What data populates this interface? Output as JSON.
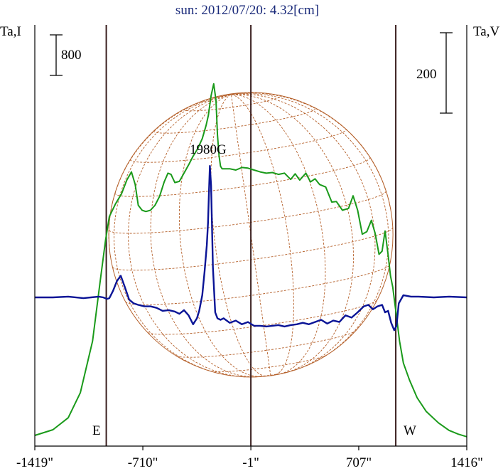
{
  "colors": {
    "frame": "#000000",
    "limb_lines": "#3a1f1f",
    "intensity_curve": "#1a9a1a",
    "polarization_curve": "#0a1496",
    "grid": "#b5602a",
    "text_title": "#1a2a7a",
    "text": "#000000"
  },
  "chart_data": {
    "type": "line",
    "title": "sun: 2012/07/20: 4.32[cm]",
    "left_axis_label": "Ta,I",
    "right_axis_label": "Ta,V",
    "x_tick_labels": [
      "-1419\"",
      "-710\"",
      "-1\"",
      "707\"",
      "1416\""
    ],
    "xlim": [
      -1419,
      1416
    ],
    "vertical_lines_at": [
      -950,
      -1,
      950
    ],
    "limb_labels": {
      "east": "E",
      "west": "W"
    },
    "scale_bar_left": {
      "label": "800"
    },
    "scale_bar_right": {
      "label": "200"
    },
    "annotation": {
      "label": "1980G"
    },
    "series": [
      {
        "role": "intensity",
        "x": [
          -1419,
          -1300,
          -1200,
          -1120,
          -1040,
          -990,
          -955,
          -930,
          -890,
          -850,
          -815,
          -785,
          -760,
          -740,
          -715,
          -690,
          -660,
          -630,
          -600,
          -570,
          -545,
          -525,
          -500,
          -470,
          -440,
          -410,
          -380,
          -350,
          -320,
          -295,
          -280,
          -262,
          -245,
          -230,
          -220,
          -210,
          -200,
          -190,
          -170,
          -140,
          -100,
          -60,
          -20,
          20,
          60,
          100,
          140,
          180,
          220,
          260,
          290,
          320,
          360,
          390,
          420,
          450,
          490,
          530,
          560,
          600,
          640,
          670,
          700,
          730,
          760,
          790,
          815,
          840,
          860,
          880,
          900,
          915,
          930,
          950,
          975,
          1000,
          1040,
          1090,
          1150,
          1230,
          1300,
          1360,
          1416
        ],
        "y": [
          0,
          90,
          280,
          680,
          1500,
          2450,
          3100,
          3480,
          3680,
          3840,
          4060,
          4190,
          3990,
          3660,
          3580,
          3560,
          3580,
          3660,
          3800,
          4030,
          4170,
          4150,
          4020,
          4040,
          4170,
          4300,
          4440,
          4560,
          4720,
          4930,
          5090,
          5400,
          5590,
          5330,
          4780,
          4450,
          4280,
          4240,
          4240,
          4240,
          4220,
          4260,
          4250,
          4220,
          4190,
          4170,
          4180,
          4150,
          4170,
          4070,
          4160,
          4060,
          4170,
          4030,
          4080,
          3990,
          3950,
          3710,
          3720,
          3580,
          3610,
          3810,
          3580,
          3200,
          3240,
          3420,
          3210,
          2880,
          2930,
          3250,
          2870,
          2540,
          2360,
          1980,
          1500,
          1150,
          880,
          600,
          380,
          200,
          80,
          20,
          -20
        ]
      },
      {
        "role": "polarization",
        "x": [
          -1419,
          -1300,
          -1200,
          -1100,
          -1050,
          -1000,
          -970,
          -945,
          -930,
          -905,
          -880,
          -855,
          -830,
          -800,
          -770,
          -740,
          -700,
          -660,
          -620,
          -580,
          -540,
          -500,
          -470,
          -440,
          -410,
          -380,
          -355,
          -340,
          -320,
          -305,
          -290,
          -282,
          -276,
          -270,
          -262,
          -250,
          -235,
          -220,
          -200,
          -180,
          -140,
          -100,
          -60,
          -20,
          20,
          60,
          100,
          140,
          180,
          220,
          260,
          300,
          340,
          380,
          420,
          460,
          500,
          540,
          580,
          620,
          660,
          700,
          740,
          770,
          800,
          830,
          860,
          880,
          900,
          920,
          940,
          955,
          970,
          1000,
          1050,
          1100,
          1200,
          1300,
          1416
        ],
        "y": [
          0,
          0,
          1,
          -1,
          0,
          1,
          0,
          -2,
          -1,
          9,
          22,
          29,
          15,
          -3,
          -8,
          -10,
          -12,
          -12,
          -14,
          -18,
          -17,
          -19,
          -22,
          -17,
          -24,
          -36,
          -28,
          -18,
          3,
          34,
          70,
          100,
          140,
          176,
          150,
          40,
          -20,
          -28,
          -30,
          -28,
          -34,
          -31,
          -36,
          -33,
          -38,
          -38,
          -39,
          -38,
          -37,
          -39,
          -37,
          -36,
          -34,
          -36,
          -33,
          -30,
          -35,
          -31,
          -33,
          -24,
          -27,
          -20,
          -12,
          -10,
          -16,
          -12,
          -10,
          -20,
          -18,
          -34,
          -44,
          -38,
          -8,
          3,
          1,
          1,
          0,
          1,
          0
        ]
      }
    ]
  }
}
